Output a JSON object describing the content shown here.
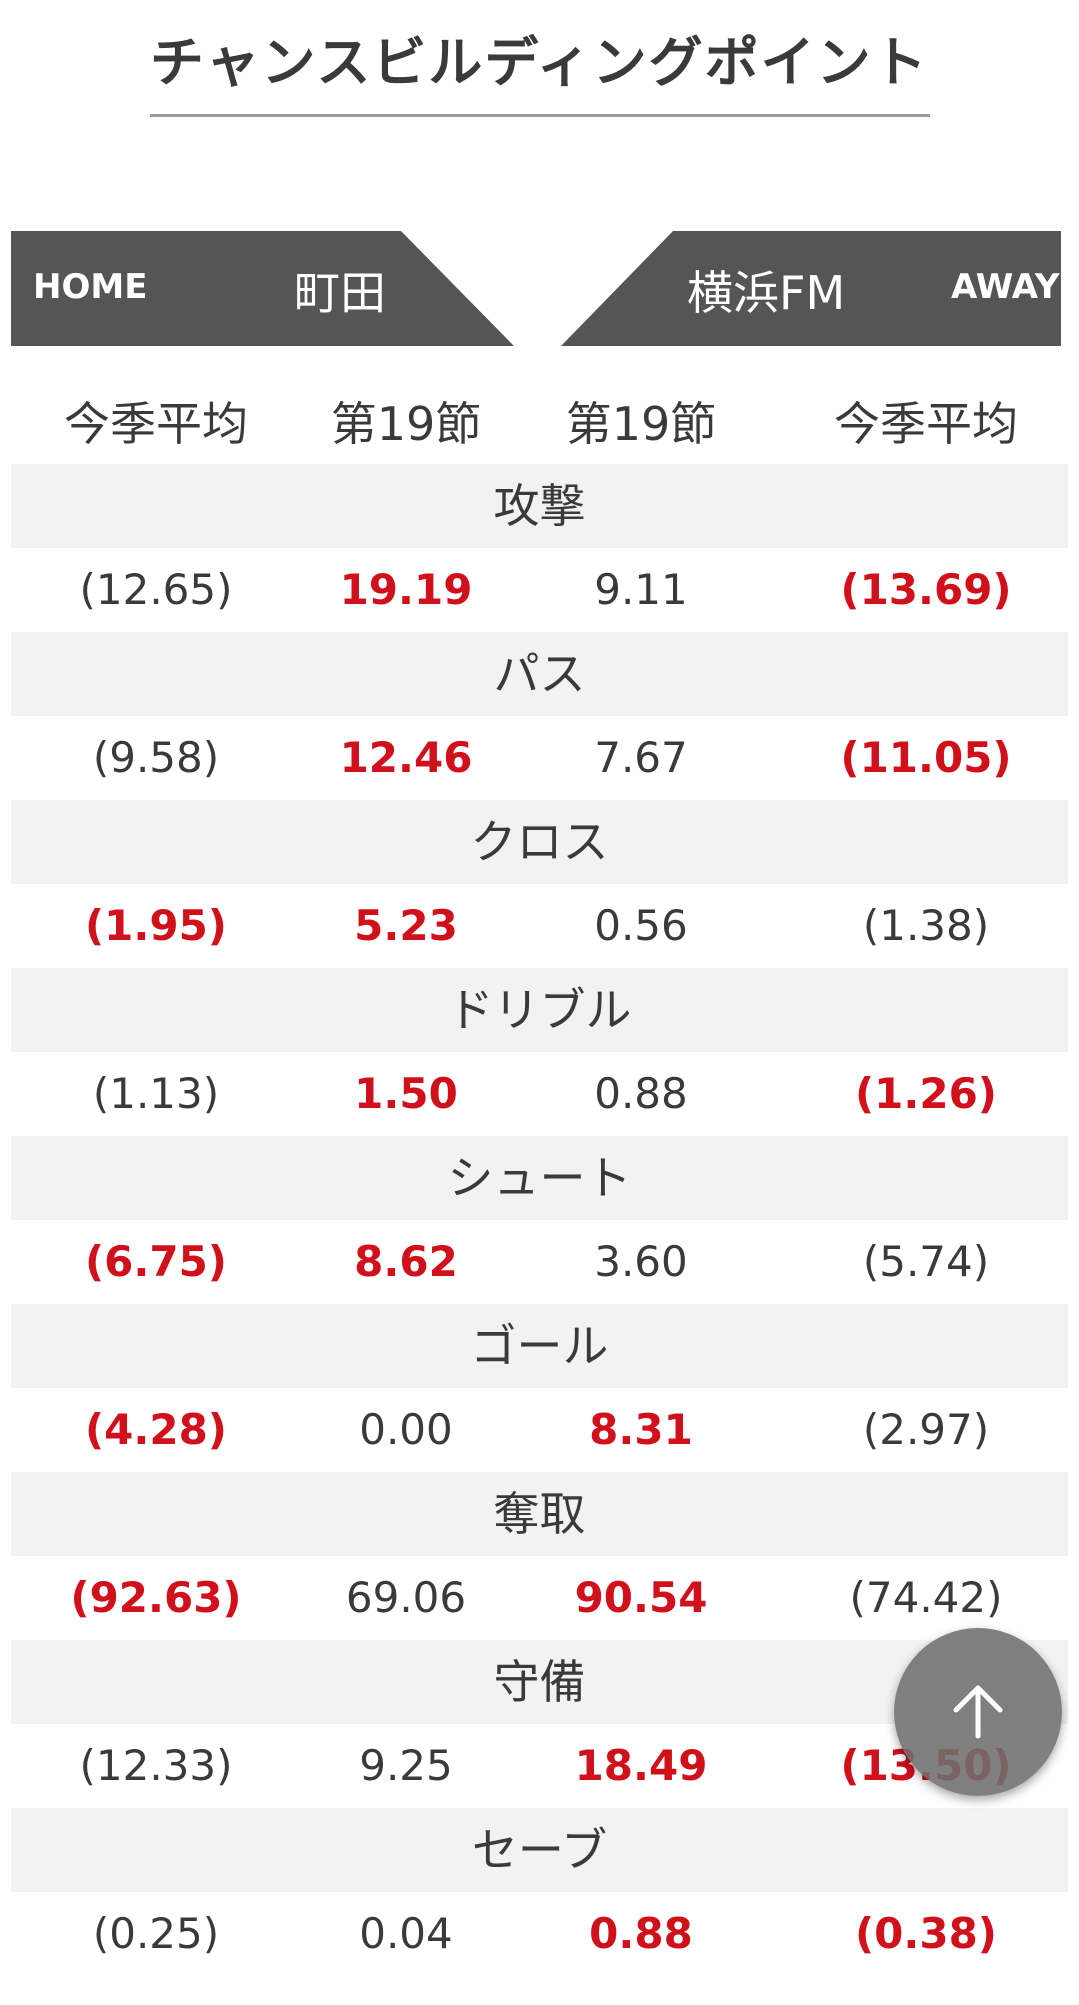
{
  "page": {
    "title": "チャンスビルディングポイント"
  },
  "banner": {
    "home_label": "HOME",
    "home_team": "町田",
    "away_team": "横浜FM",
    "away_label": "AWAY"
  },
  "columns": [
    "今季平均",
    "第19節",
    "第19節",
    "今季平均"
  ],
  "stats": [
    {
      "category": "攻撃",
      "values": [
        "(12.65)",
        "19.19",
        "9.11",
        "(13.69)"
      ],
      "highlight": [
        false,
        true,
        false,
        true
      ]
    },
    {
      "category": "パス",
      "values": [
        "(9.58)",
        "12.46",
        "7.67",
        "(11.05)"
      ],
      "highlight": [
        false,
        true,
        false,
        true
      ]
    },
    {
      "category": "クロス",
      "values": [
        "(1.95)",
        "5.23",
        "0.56",
        "(1.38)"
      ],
      "highlight": [
        true,
        true,
        false,
        false
      ]
    },
    {
      "category": "ドリブル",
      "values": [
        "(1.13)",
        "1.50",
        "0.88",
        "(1.26)"
      ],
      "highlight": [
        false,
        true,
        false,
        true
      ]
    },
    {
      "category": "シュート",
      "values": [
        "(6.75)",
        "8.62",
        "3.60",
        "(5.74)"
      ],
      "highlight": [
        true,
        true,
        false,
        false
      ]
    },
    {
      "category": "ゴール",
      "values": [
        "(4.28)",
        "0.00",
        "8.31",
        "(2.97)"
      ],
      "highlight": [
        true,
        false,
        true,
        false
      ]
    },
    {
      "category": "奪取",
      "values": [
        "(92.63)",
        "69.06",
        "90.54",
        "(74.42)"
      ],
      "highlight": [
        true,
        false,
        true,
        false
      ]
    },
    {
      "category": "守備",
      "values": [
        "(12.33)",
        "9.25",
        "18.49",
        "(13.50)"
      ],
      "highlight": [
        false,
        false,
        true,
        true
      ]
    },
    {
      "category": "セーブ",
      "values": [
        "(0.25)",
        "0.04",
        "0.88",
        "(0.38)"
      ],
      "highlight": [
        false,
        false,
        true,
        true
      ]
    }
  ],
  "colors": {
    "banner": "#555555",
    "highlight": "#d0101b",
    "text": "#3a3a3a",
    "category_bg": "#f2f2f2"
  },
  "scroll_button": {
    "icon": "arrow-up-icon"
  }
}
